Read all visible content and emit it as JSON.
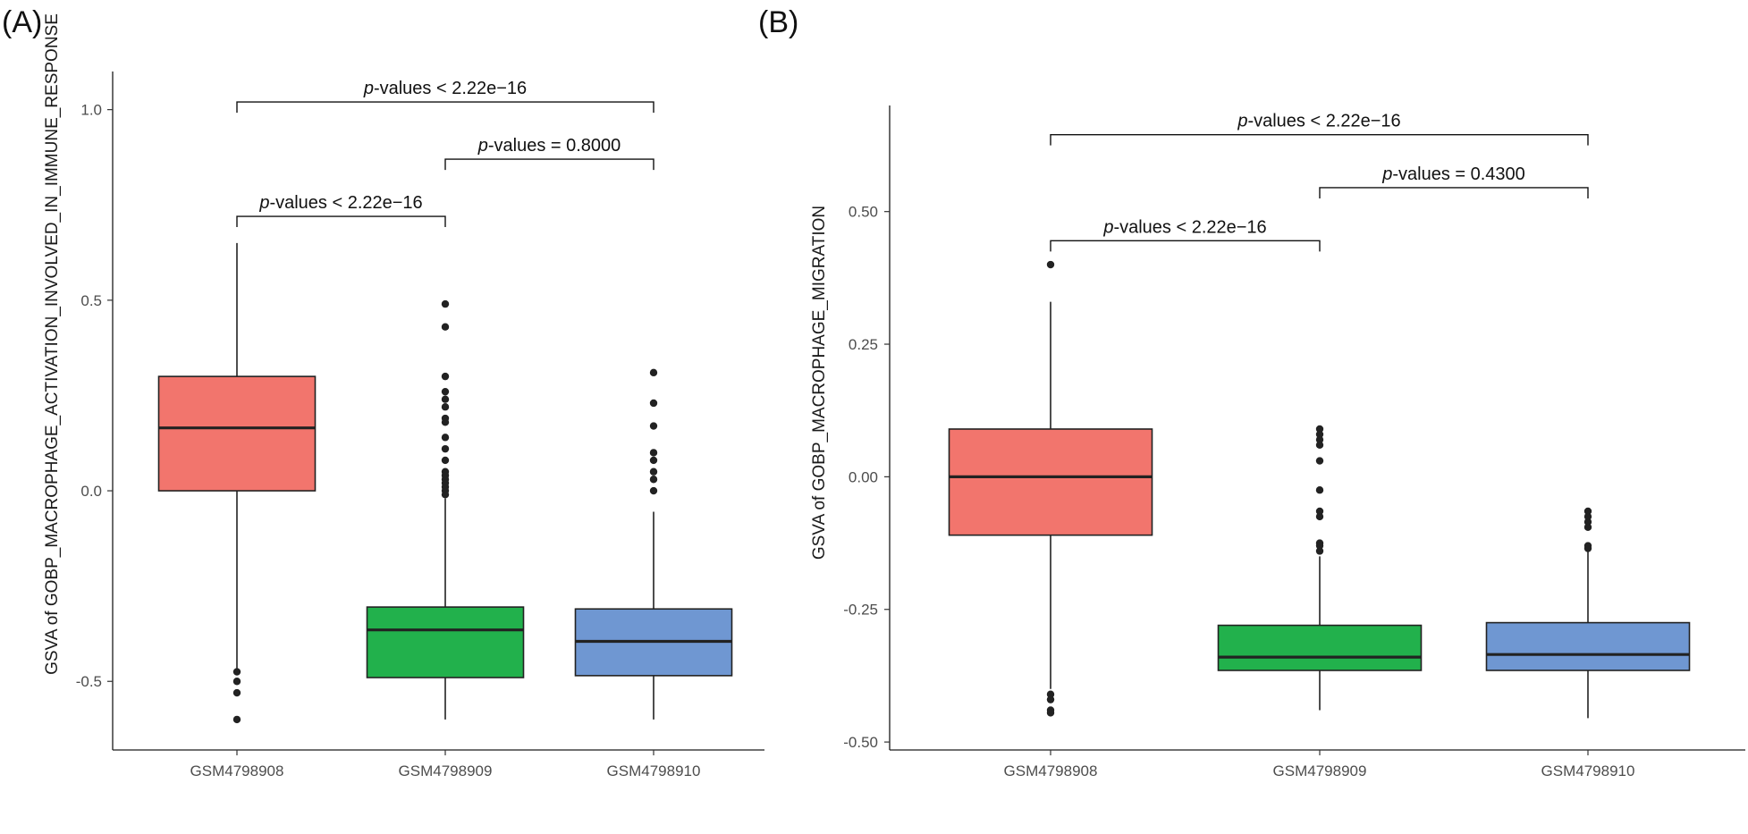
{
  "chart_data": [
    {
      "panel": "(A)",
      "type": "boxplot",
      "ylabel": "GSVA of GOBP_MACROPHAGE_ACTIVATION_INVOLVED_IN_IMMUNE_RESPONSE",
      "ylim": [
        -0.68,
        1.1
      ],
      "yticks": [
        -0.5,
        0.0,
        0.5,
        1.0
      ],
      "ytick_labels": [
        "-0.5",
        "0.0",
        "0.5",
        "1.0"
      ],
      "categories": [
        "GSM4798908",
        "GSM4798909",
        "GSM4798910"
      ],
      "colors": [
        "#F2756D",
        "#22B14C",
        "#6F97D2"
      ],
      "boxes": [
        {
          "whislo": -0.47,
          "q1": 0.0,
          "median": 0.165,
          "q3": 0.3,
          "whishi": 0.65,
          "outliers": [
            -0.475,
            -0.5,
            -0.53,
            -0.6
          ]
        },
        {
          "whislo": -0.6,
          "q1": -0.49,
          "median": -0.365,
          "q3": -0.305,
          "whishi": -0.02,
          "outliers": [
            0.49,
            0.43,
            0.3,
            0.26,
            0.24,
            0.22,
            0.19,
            0.18,
            0.14,
            0.11,
            0.08,
            0.05,
            0.04,
            0.03,
            0.02,
            0.01,
            0.0,
            -0.01
          ]
        },
        {
          "whislo": -0.6,
          "q1": -0.485,
          "median": -0.395,
          "q3": -0.31,
          "whishi": -0.055,
          "outliers": [
            0.31,
            0.23,
            0.17,
            0.1,
            0.08,
            0.05,
            0.03,
            0.0
          ]
        }
      ],
      "comparisons": [
        {
          "from": 0,
          "to": 2,
          "y": 1.02,
          "label_italic": "p",
          "label_text": "-values < 2.22e−16"
        },
        {
          "from": 1,
          "to": 2,
          "y": 0.87,
          "label_italic": "p",
          "label_text": "-values  = 0.8000"
        },
        {
          "from": 0,
          "to": 1,
          "y": 0.72,
          "label_italic": "p",
          "label_text": "-values  < 2.22e−16"
        }
      ]
    },
    {
      "panel": "(B)",
      "type": "boxplot",
      "ylabel": "GSVA of GOBP_MACROPHAGE_MIGRATION",
      "ylim": [
        -0.515,
        0.7
      ],
      "yticks": [
        -0.5,
        -0.25,
        0.0,
        0.25,
        0.5
      ],
      "ytick_labels": [
        "-0.50",
        "-0.25",
        "0.00",
        "0.25",
        "0.50"
      ],
      "categories": [
        "GSM4798908",
        "GSM4798909",
        "GSM4798910"
      ],
      "colors": [
        "#F2756D",
        "#22B14C",
        "#6F97D2"
      ],
      "boxes": [
        {
          "whislo": -0.4,
          "q1": -0.11,
          "median": 0.0,
          "q3": 0.09,
          "whishi": 0.33,
          "outliers": [
            0.4,
            -0.41,
            -0.42,
            -0.44,
            -0.445
          ]
        },
        {
          "whislo": -0.44,
          "q1": -0.365,
          "median": -0.34,
          "q3": -0.28,
          "whishi": -0.15,
          "outliers": [
            0.09,
            0.08,
            0.07,
            0.06,
            0.03,
            -0.025,
            -0.065,
            -0.075,
            -0.125,
            -0.13,
            -0.14
          ]
        },
        {
          "whislo": -0.455,
          "q1": -0.365,
          "median": -0.335,
          "q3": -0.275,
          "whishi": -0.14,
          "outliers": [
            -0.065,
            -0.075,
            -0.085,
            -0.095,
            -0.13,
            -0.135
          ]
        }
      ],
      "comparisons": [
        {
          "from": 0,
          "to": 2,
          "y": 0.645,
          "label_italic": "p",
          "label_text": "-values < 2.22e−16"
        },
        {
          "from": 1,
          "to": 2,
          "y": 0.545,
          "label_italic": "p",
          "label_text": "-values  = 0.4300"
        },
        {
          "from": 0,
          "to": 1,
          "y": 0.445,
          "label_italic": "p",
          "label_text": "-values < 2.22e−16"
        }
      ]
    }
  ]
}
